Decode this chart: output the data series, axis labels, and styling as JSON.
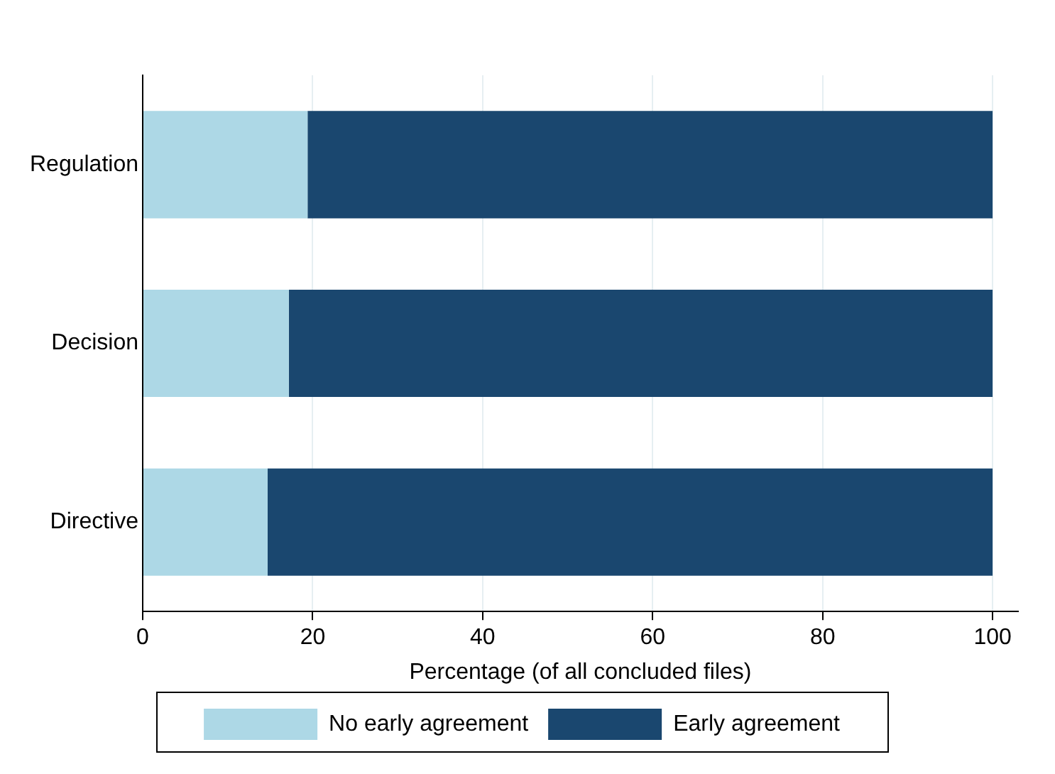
{
  "chart_data": {
    "type": "bar",
    "orientation": "horizontal",
    "stacked": true,
    "categories": [
      "Regulation",
      "Decision",
      "Directive"
    ],
    "series": [
      {
        "name": "No early agreement",
        "color": "#add8e6",
        "values": [
          19.4,
          17.2,
          14.7
        ]
      },
      {
        "name": "Early agreement",
        "color": "#1a476f",
        "values": [
          80.6,
          82.8,
          85.3
        ]
      }
    ],
    "xlabel": "Percentage (of all concluded files)",
    "xlim": [
      0,
      103
    ],
    "xticks": [
      0,
      20,
      40,
      60,
      80,
      100
    ],
    "grid": "x",
    "legend": "bottom"
  }
}
